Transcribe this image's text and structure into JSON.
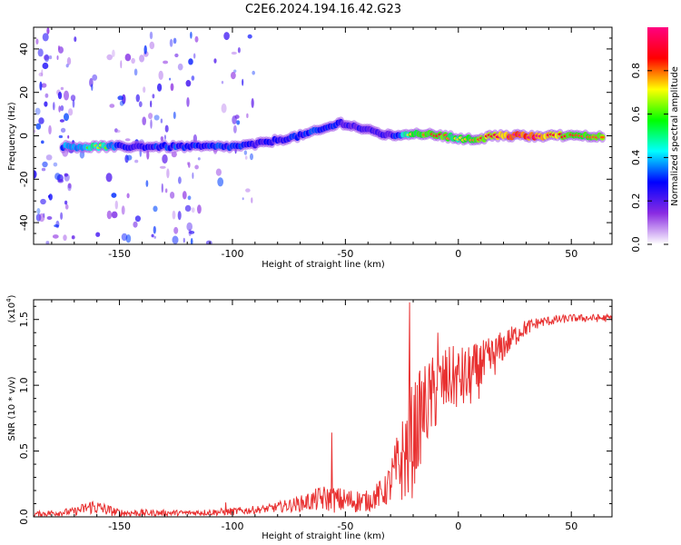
{
  "title": "C2E6.2024.194.16.42.G23",
  "chart_data": [
    {
      "type": "heatmap",
      "name": "spectrogram",
      "xlabel": "Height of straight line (km)",
      "ylabel": "Frequency (Hz)",
      "xlim": [
        -188,
        68
      ],
      "ylim": [
        -50,
        50
      ],
      "xticks": [
        -150,
        -100,
        -50,
        0,
        50
      ],
      "xtick_labels": [
        "-150",
        "-100",
        "-50",
        "0",
        "50"
      ],
      "yticks": [
        -40,
        -20,
        0,
        20,
        40
      ],
      "ytick_labels": [
        "-40",
        "-20",
        "0",
        "20",
        "40"
      ],
      "colorbar": {
        "label": "Normalized spectral amplitude",
        "range": [
          0,
          1
        ],
        "ticks": [
          0,
          0.2,
          0.4,
          0.6,
          0.8
        ],
        "tick_labels": [
          "0.0",
          "0.2",
          "0.4",
          "0.6",
          "0.8"
        ],
        "colormap": [
          "#ffffff",
          "#8a2be2",
          "#0000ff",
          "#00ffff",
          "#00ff00",
          "#ffff00",
          "#ff0000",
          "#ff0080"
        ]
      },
      "ridge": [
        {
          "x": -175,
          "y": -5,
          "a": 0.45
        },
        {
          "x": -165,
          "y": -5,
          "a": 0.5
        },
        {
          "x": -158,
          "y": -5,
          "a": 0.6
        },
        {
          "x": -150,
          "y": -5,
          "a": 0.35
        },
        {
          "x": -140,
          "y": -5,
          "a": 0.35
        },
        {
          "x": -130,
          "y": -5,
          "a": 0.4
        },
        {
          "x": -120,
          "y": -5,
          "a": 0.4
        },
        {
          "x": -110,
          "y": -5,
          "a": 0.4
        },
        {
          "x": -100,
          "y": -5,
          "a": 0.4
        },
        {
          "x": -90,
          "y": -4,
          "a": 0.35
        },
        {
          "x": -80,
          "y": -2,
          "a": 0.35
        },
        {
          "x": -70,
          "y": 0,
          "a": 0.4
        },
        {
          "x": -60,
          "y": 3,
          "a": 0.4
        },
        {
          "x": -52,
          "y": 6,
          "a": 0.35
        },
        {
          "x": -45,
          "y": 4,
          "a": 0.3
        },
        {
          "x": -38,
          "y": 2,
          "a": 0.35
        },
        {
          "x": -30,
          "y": 0,
          "a": 0.3
        },
        {
          "x": -22,
          "y": 1,
          "a": 0.6
        },
        {
          "x": -15,
          "y": 1,
          "a": 0.7
        },
        {
          "x": -8,
          "y": 0,
          "a": 0.75
        },
        {
          "x": 0,
          "y": -1,
          "a": 0.6
        },
        {
          "x": 8,
          "y": -2,
          "a": 0.7
        },
        {
          "x": 15,
          "y": 0,
          "a": 0.8
        },
        {
          "x": 25,
          "y": 0,
          "a": 0.9
        },
        {
          "x": 35,
          "y": 0,
          "a": 0.9
        },
        {
          "x": 45,
          "y": 0,
          "a": 0.75
        },
        {
          "x": 55,
          "y": 0,
          "a": 0.7
        },
        {
          "x": 65,
          "y": 0,
          "a": 0.7
        }
      ]
    },
    {
      "type": "line",
      "name": "snr",
      "xlabel": "Height of straight line (km)",
      "ylabel": "SNR (10 * v/v)",
      "y_multiplier": "(x10",
      "y_multiplier_exp": "4",
      "y_multiplier_close": ")",
      "xlim": [
        -188,
        68
      ],
      "ylim": [
        0,
        1.65
      ],
      "xticks": [
        -150,
        -100,
        -50,
        0,
        50
      ],
      "xtick_labels": [
        "-150",
        "-100",
        "-50",
        "0",
        "50"
      ],
      "yticks": [
        0,
        0.5,
        1.0,
        1.5
      ],
      "ytick_labels": [
        "0.0",
        "0.5",
        "1.0",
        "1.5"
      ],
      "color": "#e83030",
      "envelope": [
        {
          "x": -188,
          "y": 0.02,
          "amp": 0.02
        },
        {
          "x": -170,
          "y": 0.04,
          "amp": 0.03
        },
        {
          "x": -162,
          "y": 0.08,
          "amp": 0.06
        },
        {
          "x": -150,
          "y": 0.03,
          "amp": 0.03
        },
        {
          "x": -120,
          "y": 0.03,
          "amp": 0.02
        },
        {
          "x": -100,
          "y": 0.04,
          "amp": 0.03
        },
        {
          "x": -85,
          "y": 0.06,
          "amp": 0.03
        },
        {
          "x": -70,
          "y": 0.1,
          "amp": 0.06
        },
        {
          "x": -60,
          "y": 0.14,
          "amp": 0.1
        },
        {
          "x": -50,
          "y": 0.12,
          "amp": 0.1
        },
        {
          "x": -40,
          "y": 0.12,
          "amp": 0.08
        },
        {
          "x": -32,
          "y": 0.2,
          "amp": 0.12
        },
        {
          "x": -26,
          "y": 0.4,
          "amp": 0.3
        },
        {
          "x": -21,
          "y": 0.55,
          "amp": 0.45
        },
        {
          "x": -16,
          "y": 0.8,
          "amp": 0.35
        },
        {
          "x": -10,
          "y": 0.95,
          "amp": 0.3
        },
        {
          "x": -4,
          "y": 1.05,
          "amp": 0.25
        },
        {
          "x": 4,
          "y": 1.05,
          "amp": 0.25
        },
        {
          "x": 12,
          "y": 1.15,
          "amp": 0.2
        },
        {
          "x": 20,
          "y": 1.3,
          "amp": 0.12
        },
        {
          "x": 28,
          "y": 1.42,
          "amp": 0.07
        },
        {
          "x": 36,
          "y": 1.48,
          "amp": 0.04
        },
        {
          "x": 50,
          "y": 1.51,
          "amp": 0.03
        },
        {
          "x": 68,
          "y": 1.51,
          "amp": 0.03
        }
      ],
      "spikes": [
        {
          "x": -21.5,
          "y": 1.63
        },
        {
          "x": -9,
          "y": 1.4
        },
        {
          "x": -56,
          "y": 0.64
        },
        {
          "x": -103,
          "y": 0.11
        },
        {
          "x": 10,
          "y": 1.3
        }
      ]
    }
  ]
}
